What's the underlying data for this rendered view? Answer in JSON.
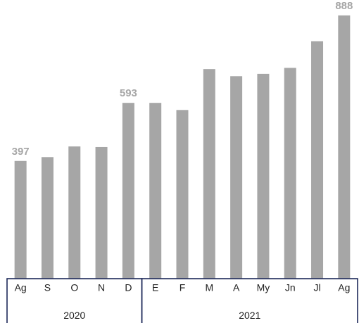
{
  "chart_data": {
    "type": "bar",
    "categories": [
      "Ag",
      "S",
      "O",
      "N",
      "D",
      "E",
      "F",
      "M",
      "A",
      "My",
      "Jn",
      "Jl",
      "Ag"
    ],
    "values": [
      397,
      410,
      446,
      444,
      593,
      593,
      569,
      707,
      683,
      691,
      711,
      801,
      888
    ],
    "data_labels": [
      "397",
      "",
      "",
      "",
      "593",
      "",
      "",
      "",
      "",
      "",
      "",
      "",
      "888"
    ],
    "groups": [
      {
        "label": "2020",
        "count": 5
      },
      {
        "label": "2021",
        "count": 8
      }
    ],
    "ylim": [
      0,
      940
    ],
    "title": "",
    "xlabel": "",
    "ylabel": "",
    "grid": false,
    "bar_color": "#a6a6a6",
    "axis_frame_color": "#1e2a5a"
  }
}
